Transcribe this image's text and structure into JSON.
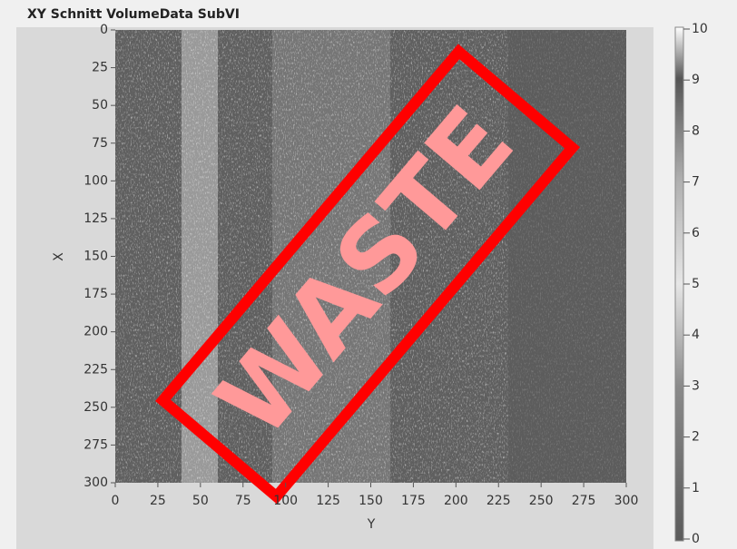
{
  "chart_data": {
    "type": "heatmap",
    "title": "XY Schnitt VolumeData SubVI",
    "x_label": "Y",
    "y_label": "X",
    "xlim": [
      0,
      300
    ],
    "xticks": [
      0,
      25,
      50,
      75,
      100,
      125,
      150,
      175,
      200,
      225,
      250,
      275,
      300
    ],
    "ylim": [
      0,
      300
    ],
    "yticks": [
      0,
      25,
      50,
      75,
      100,
      125,
      150,
      175,
      200,
      225,
      250,
      275,
      300
    ],
    "y_inverted": true,
    "zlim": [
      0,
      10
    ],
    "zticks": [
      0,
      1,
      2,
      3,
      4,
      5,
      6,
      7,
      8,
      9,
      10
    ],
    "annotation": "WASTE"
  }
}
